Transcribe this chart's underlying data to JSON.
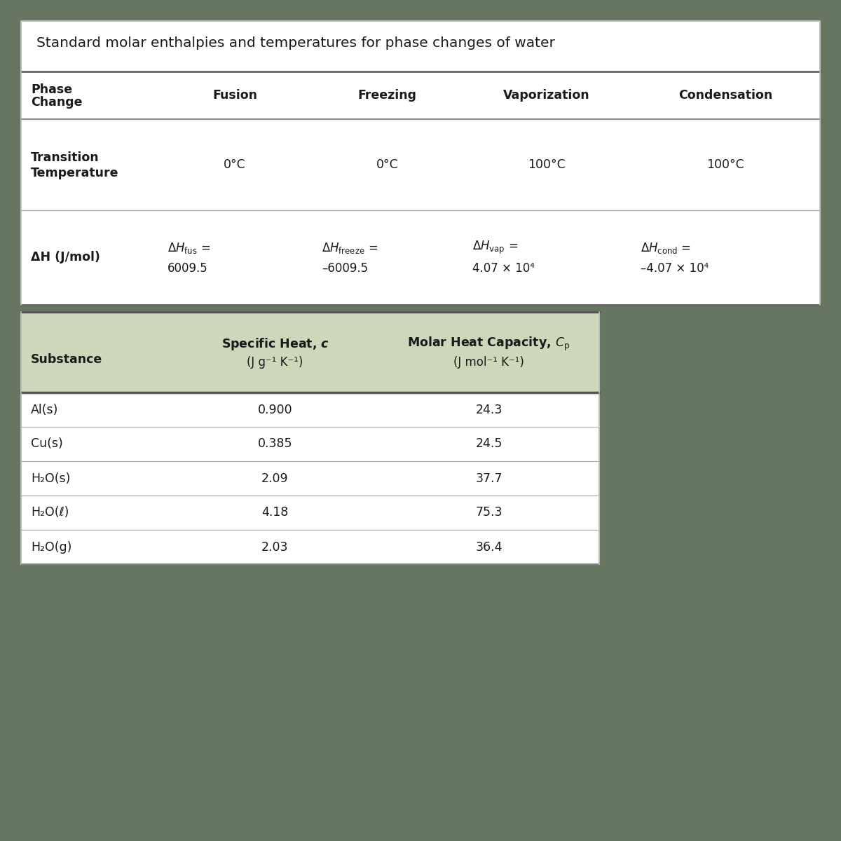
{
  "title": "Standard molar enthalpies and temperatures for phase changes of water",
  "bg_color": "#677660",
  "table_bg": "#ffffff",
  "header_bg": "#cdd8bb",
  "title_color": "#1a1a1a",
  "text_color": "#1a1a1a",
  "line_color": "#999999",
  "thick_line_color": "#555555",
  "phase_cols": [
    "Fusion",
    "Freezing",
    "Vaporization",
    "Condensation"
  ],
  "temps": [
    "0°C",
    "0°C",
    "100°C",
    "100°C"
  ],
  "substances": [
    "Al(s)",
    "Cu(s)",
    "H₂O(s)",
    "H₂O(ℓ)",
    "H₂O(g)"
  ],
  "specific_heat": [
    "0.900",
    "0.385",
    "2.09",
    "4.18",
    "2.03"
  ],
  "molar_heat": [
    "24.3",
    "24.5",
    "37.7",
    "75.3",
    "36.4"
  ]
}
